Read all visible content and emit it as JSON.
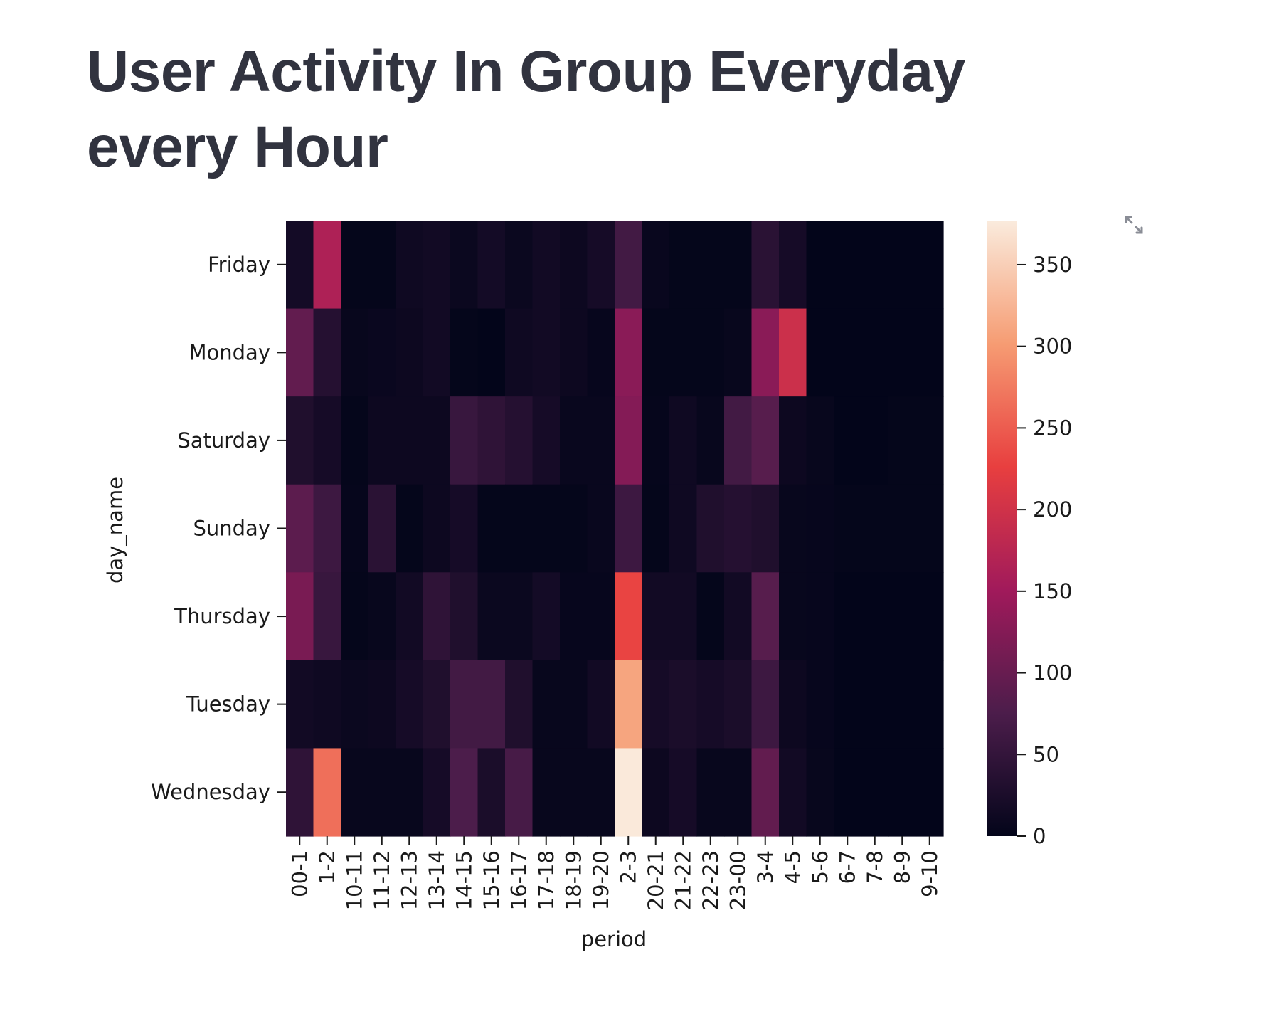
{
  "page": {
    "title": "User Activity In Group Everyday every Hour",
    "expand_icon": "fullscreen-expand-icon"
  },
  "colors": {
    "text": "#31333f",
    "colormap": "rocket",
    "colormap_stops": [
      "#03051a",
      "#4c1d4b",
      "#a11a5b",
      "#e83f3f",
      "#f69c73",
      "#faebdd"
    ]
  },
  "chart_data": {
    "type": "heatmap",
    "title": "",
    "xlabel": "period",
    "ylabel": "day_name",
    "x": [
      "00-1",
      "1-2",
      "10-11",
      "11-12",
      "12-13",
      "13-14",
      "14-15",
      "15-16",
      "16-17",
      "17-18",
      "18-19",
      "19-20",
      "2-3",
      "20-21",
      "21-22",
      "22-23",
      "23-00",
      "3-4",
      "4-5",
      "5-6",
      "6-7",
      "7-8",
      "8-9",
      "9-10"
    ],
    "y": [
      "Friday",
      "Monday",
      "Saturday",
      "Sunday",
      "Thursday",
      "Tuesday",
      "Wednesday"
    ],
    "values": [
      [
        18,
        165,
        2,
        2,
        12,
        15,
        8,
        18,
        8,
        15,
        10,
        20,
        65,
        6,
        2,
        2,
        2,
        40,
        20,
        0,
        0,
        0,
        0,
        0
      ],
      [
        95,
        35,
        5,
        7,
        10,
        15,
        2,
        0,
        12,
        15,
        10,
        4,
        130,
        2,
        2,
        2,
        5,
        130,
        195,
        0,
        0,
        0,
        0,
        0
      ],
      [
        30,
        20,
        2,
        10,
        10,
        10,
        55,
        45,
        35,
        20,
        6,
        6,
        125,
        3,
        12,
        5,
        65,
        85,
        10,
        5,
        0,
        0,
        2,
        2
      ],
      [
        90,
        60,
        3,
        40,
        2,
        10,
        20,
        2,
        2,
        2,
        2,
        6,
        60,
        2,
        12,
        30,
        35,
        30,
        5,
        4,
        2,
        2,
        2,
        2
      ],
      [
        115,
        55,
        2,
        5,
        15,
        45,
        30,
        8,
        8,
        18,
        4,
        4,
        230,
        15,
        15,
        2,
        15,
        85,
        5,
        4,
        0,
        0,
        0,
        0
      ],
      [
        15,
        12,
        8,
        10,
        20,
        30,
        65,
        65,
        30,
        5,
        5,
        15,
        310,
        20,
        25,
        20,
        25,
        60,
        10,
        4,
        0,
        0,
        0,
        0
      ],
      [
        45,
        265,
        5,
        5,
        5,
        20,
        75,
        25,
        70,
        5,
        5,
        5,
        375,
        10,
        20,
        5,
        5,
        95,
        15,
        5,
        0,
        0,
        0,
        0
      ]
    ],
    "colorbar": {
      "range": [
        0,
        377
      ],
      "ticks": [
        0,
        50,
        100,
        150,
        200,
        250,
        300,
        350
      ]
    }
  }
}
